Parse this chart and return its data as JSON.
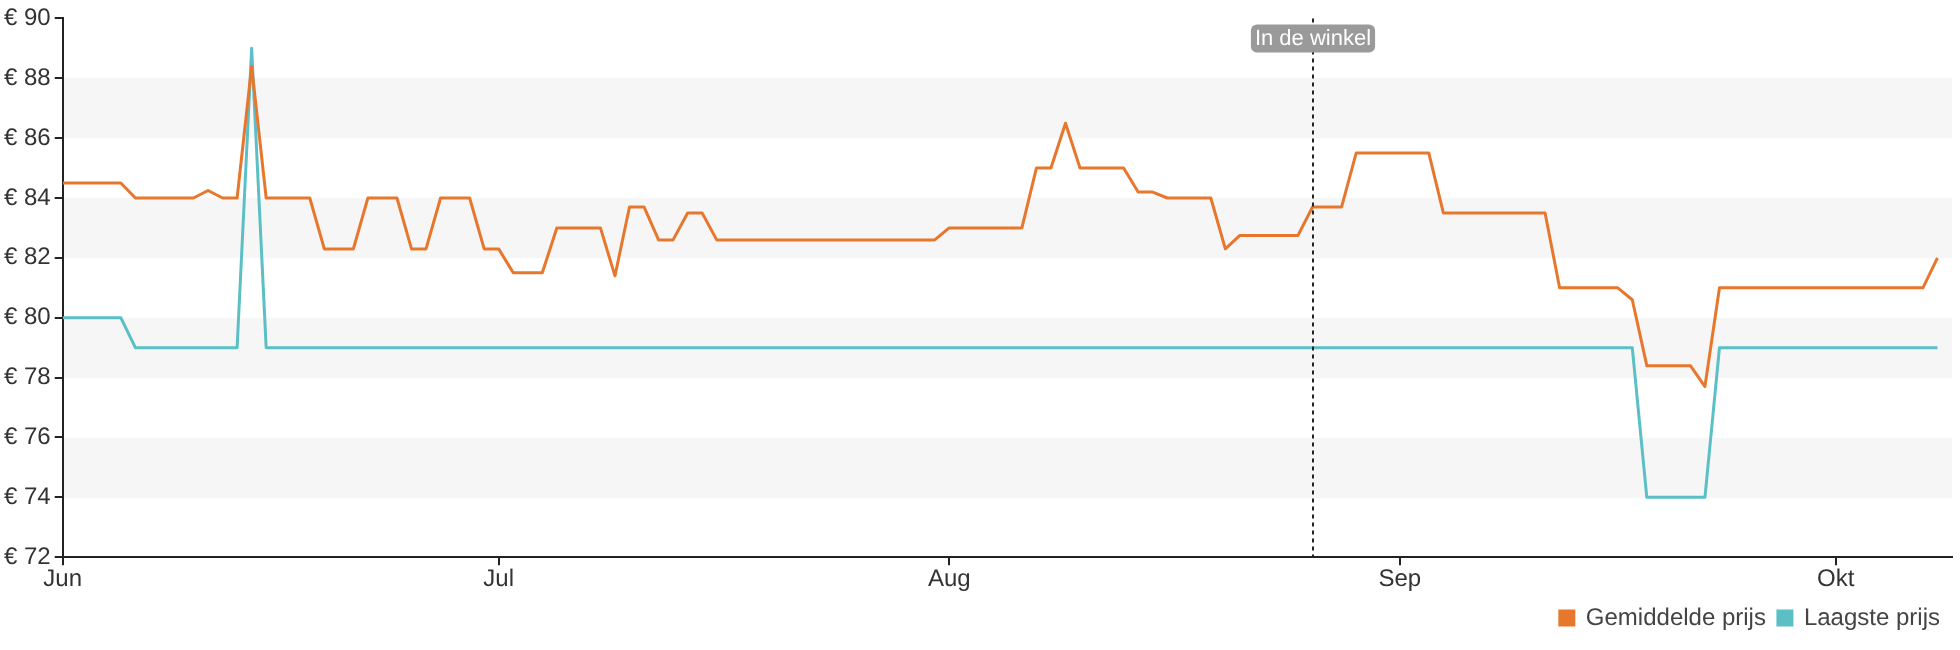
{
  "chart_data": {
    "type": "line",
    "xlim": [
      "--06-01",
      "--10-09"
    ],
    "xticks": [
      {
        "value": "--06-01",
        "label": "Jun"
      },
      {
        "value": "--07-01",
        "label": "Jul"
      },
      {
        "value": "--08-01",
        "label": "Aug"
      },
      {
        "value": "--09-01",
        "label": "Sep"
      },
      {
        "value": "--10-01",
        "label": "Okt"
      }
    ],
    "ylim": [
      72,
      90
    ],
    "yticks": [
      {
        "value": 72,
        "label": "€ 72"
      },
      {
        "value": 74,
        "label": "€ 74"
      },
      {
        "value": 76,
        "label": "€ 76"
      },
      {
        "value": 78,
        "label": "€ 78"
      },
      {
        "value": 80,
        "label": "€ 80"
      },
      {
        "value": 82,
        "label": "€ 82"
      },
      {
        "value": 84,
        "label": "€ 84"
      },
      {
        "value": 86,
        "label": "€ 86"
      },
      {
        "value": 88,
        "label": "€ 88"
      },
      {
        "value": 90,
        "label": "€ 90"
      }
    ],
    "legend": "bottom right",
    "marker": "none",
    "line_style": "solid",
    "ref_lines": [
      {
        "axis": "x",
        "value": "--08-26",
        "label": "In de winkel",
        "line_style": "dotted",
        "color": "#222222"
      }
    ],
    "series": [
      {
        "name": "Gemiddelde prijs",
        "color": "#e8772e",
        "x": [
          "--06-01",
          "--06-05",
          "--06-06",
          "--06-10",
          "--06-11",
          "--06-12",
          "--06-13",
          "--06-14",
          "--06-15",
          "--06-18",
          "--06-19",
          "--06-21",
          "--06-22",
          "--06-24",
          "--06-25",
          "--06-26",
          "--06-27",
          "--06-29",
          "--06-30",
          "--07-01",
          "--07-02",
          "--07-04",
          "--07-05",
          "--07-08",
          "--07-09",
          "--07-10",
          "--07-11",
          "--07-12",
          "--07-13",
          "--07-14",
          "--07-15",
          "--07-16",
          "--07-31",
          "--08-01",
          "--08-06",
          "--08-07",
          "--08-08",
          "--08-09",
          "--08-10",
          "--08-13",
          "--08-14",
          "--08-15",
          "--08-16",
          "--08-19",
          "--08-20",
          "--08-21",
          "--08-25",
          "--08-26",
          "--08-28",
          "--08-29",
          "--09-03",
          "--09-04",
          "--09-11",
          "--09-12",
          "--09-16",
          "--09-17",
          "--09-18",
          "--09-21",
          "--09-22",
          "--09-23",
          "--10-07",
          "--10-08"
        ],
        "values": [
          84.5,
          84.5,
          84,
          84,
          84.25,
          84,
          84,
          88.4,
          84,
          84,
          82.3,
          82.3,
          84,
          84,
          82.3,
          82.3,
          84,
          84,
          82.3,
          82.3,
          81.5,
          81.5,
          83,
          83,
          81.4,
          83.7,
          83.7,
          82.6,
          82.6,
          83.5,
          83.5,
          82.6,
          82.6,
          83,
          83,
          85,
          85,
          86.5,
          85,
          85,
          84.2,
          84.2,
          84,
          84,
          82.3,
          82.75,
          82.75,
          83.7,
          83.7,
          85.5,
          85.5,
          83.5,
          83.5,
          81,
          81,
          80.6,
          78.4,
          78.4,
          77.7,
          81,
          81,
          82
        ]
      },
      {
        "name": "Laagste prijs",
        "color": "#5bbfc6",
        "x": [
          "--06-01",
          "--06-05",
          "--06-06",
          "--06-13",
          "--06-14",
          "--06-15",
          "--09-17",
          "--09-18",
          "--09-22",
          "--09-23",
          "--10-08"
        ],
        "values": [
          80,
          80,
          79,
          79,
          89,
          79,
          79,
          74,
          74,
          79,
          79
        ]
      }
    ]
  }
}
